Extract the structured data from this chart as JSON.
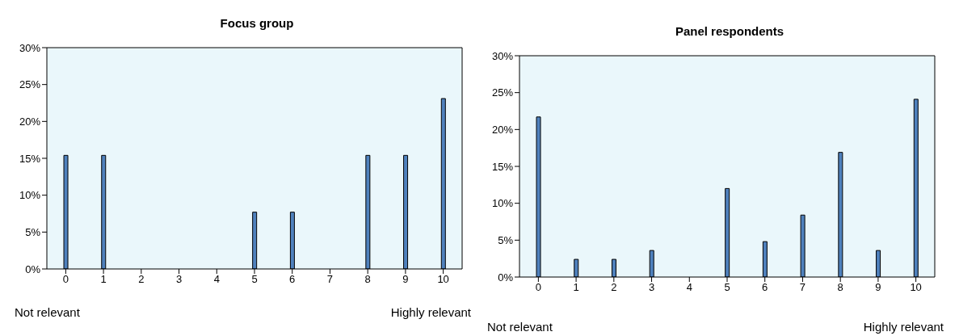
{
  "chart_data": [
    {
      "type": "bar",
      "title": "Focus group",
      "categories": [
        "0",
        "1",
        "2",
        "3",
        "4",
        "5",
        "6",
        "7",
        "8",
        "9",
        "10"
      ],
      "values": [
        15.4,
        15.4,
        0,
        0,
        0,
        7.7,
        7.7,
        0,
        15.4,
        15.4,
        23.1
      ],
      "color": "#4f81bd",
      "ylim": [
        0,
        30
      ],
      "yticks": [
        {
          "value": 0,
          "label": "0%"
        },
        {
          "value": 5,
          "label": "5%"
        },
        {
          "value": 10,
          "label": "10%"
        },
        {
          "value": 15,
          "label": "15%"
        },
        {
          "value": 20,
          "label": "20%"
        },
        {
          "value": 25,
          "label": "25%"
        },
        {
          "value": 30,
          "label": "30%"
        }
      ],
      "grid": false,
      "annotations": [
        "Not relevant",
        "Highly relevant"
      ]
    },
    {
      "type": "bar",
      "title": "Panel respondents",
      "categories": [
        "0",
        "1",
        "2",
        "3",
        "4",
        "5",
        "6",
        "7",
        "8",
        "9",
        "10"
      ],
      "values": [
        21.7,
        2.4,
        2.4,
        3.6,
        0,
        12.0,
        4.8,
        8.4,
        16.9,
        3.6,
        24.1
      ],
      "color": "#4f81bd",
      "ylim": [
        0,
        30
      ],
      "yticks": [
        {
          "value": 0,
          "label": "0%"
        },
        {
          "value": 5,
          "label": "5%"
        },
        {
          "value": 10,
          "label": "10%"
        },
        {
          "value": 15,
          "label": "15%"
        },
        {
          "value": 20,
          "label": "20%"
        },
        {
          "value": 25,
          "label": "25%"
        },
        {
          "value": 30,
          "label": "30%"
        }
      ],
      "grid": false,
      "annotations": [
        "Not relevant",
        "Highly relevant"
      ]
    }
  ]
}
